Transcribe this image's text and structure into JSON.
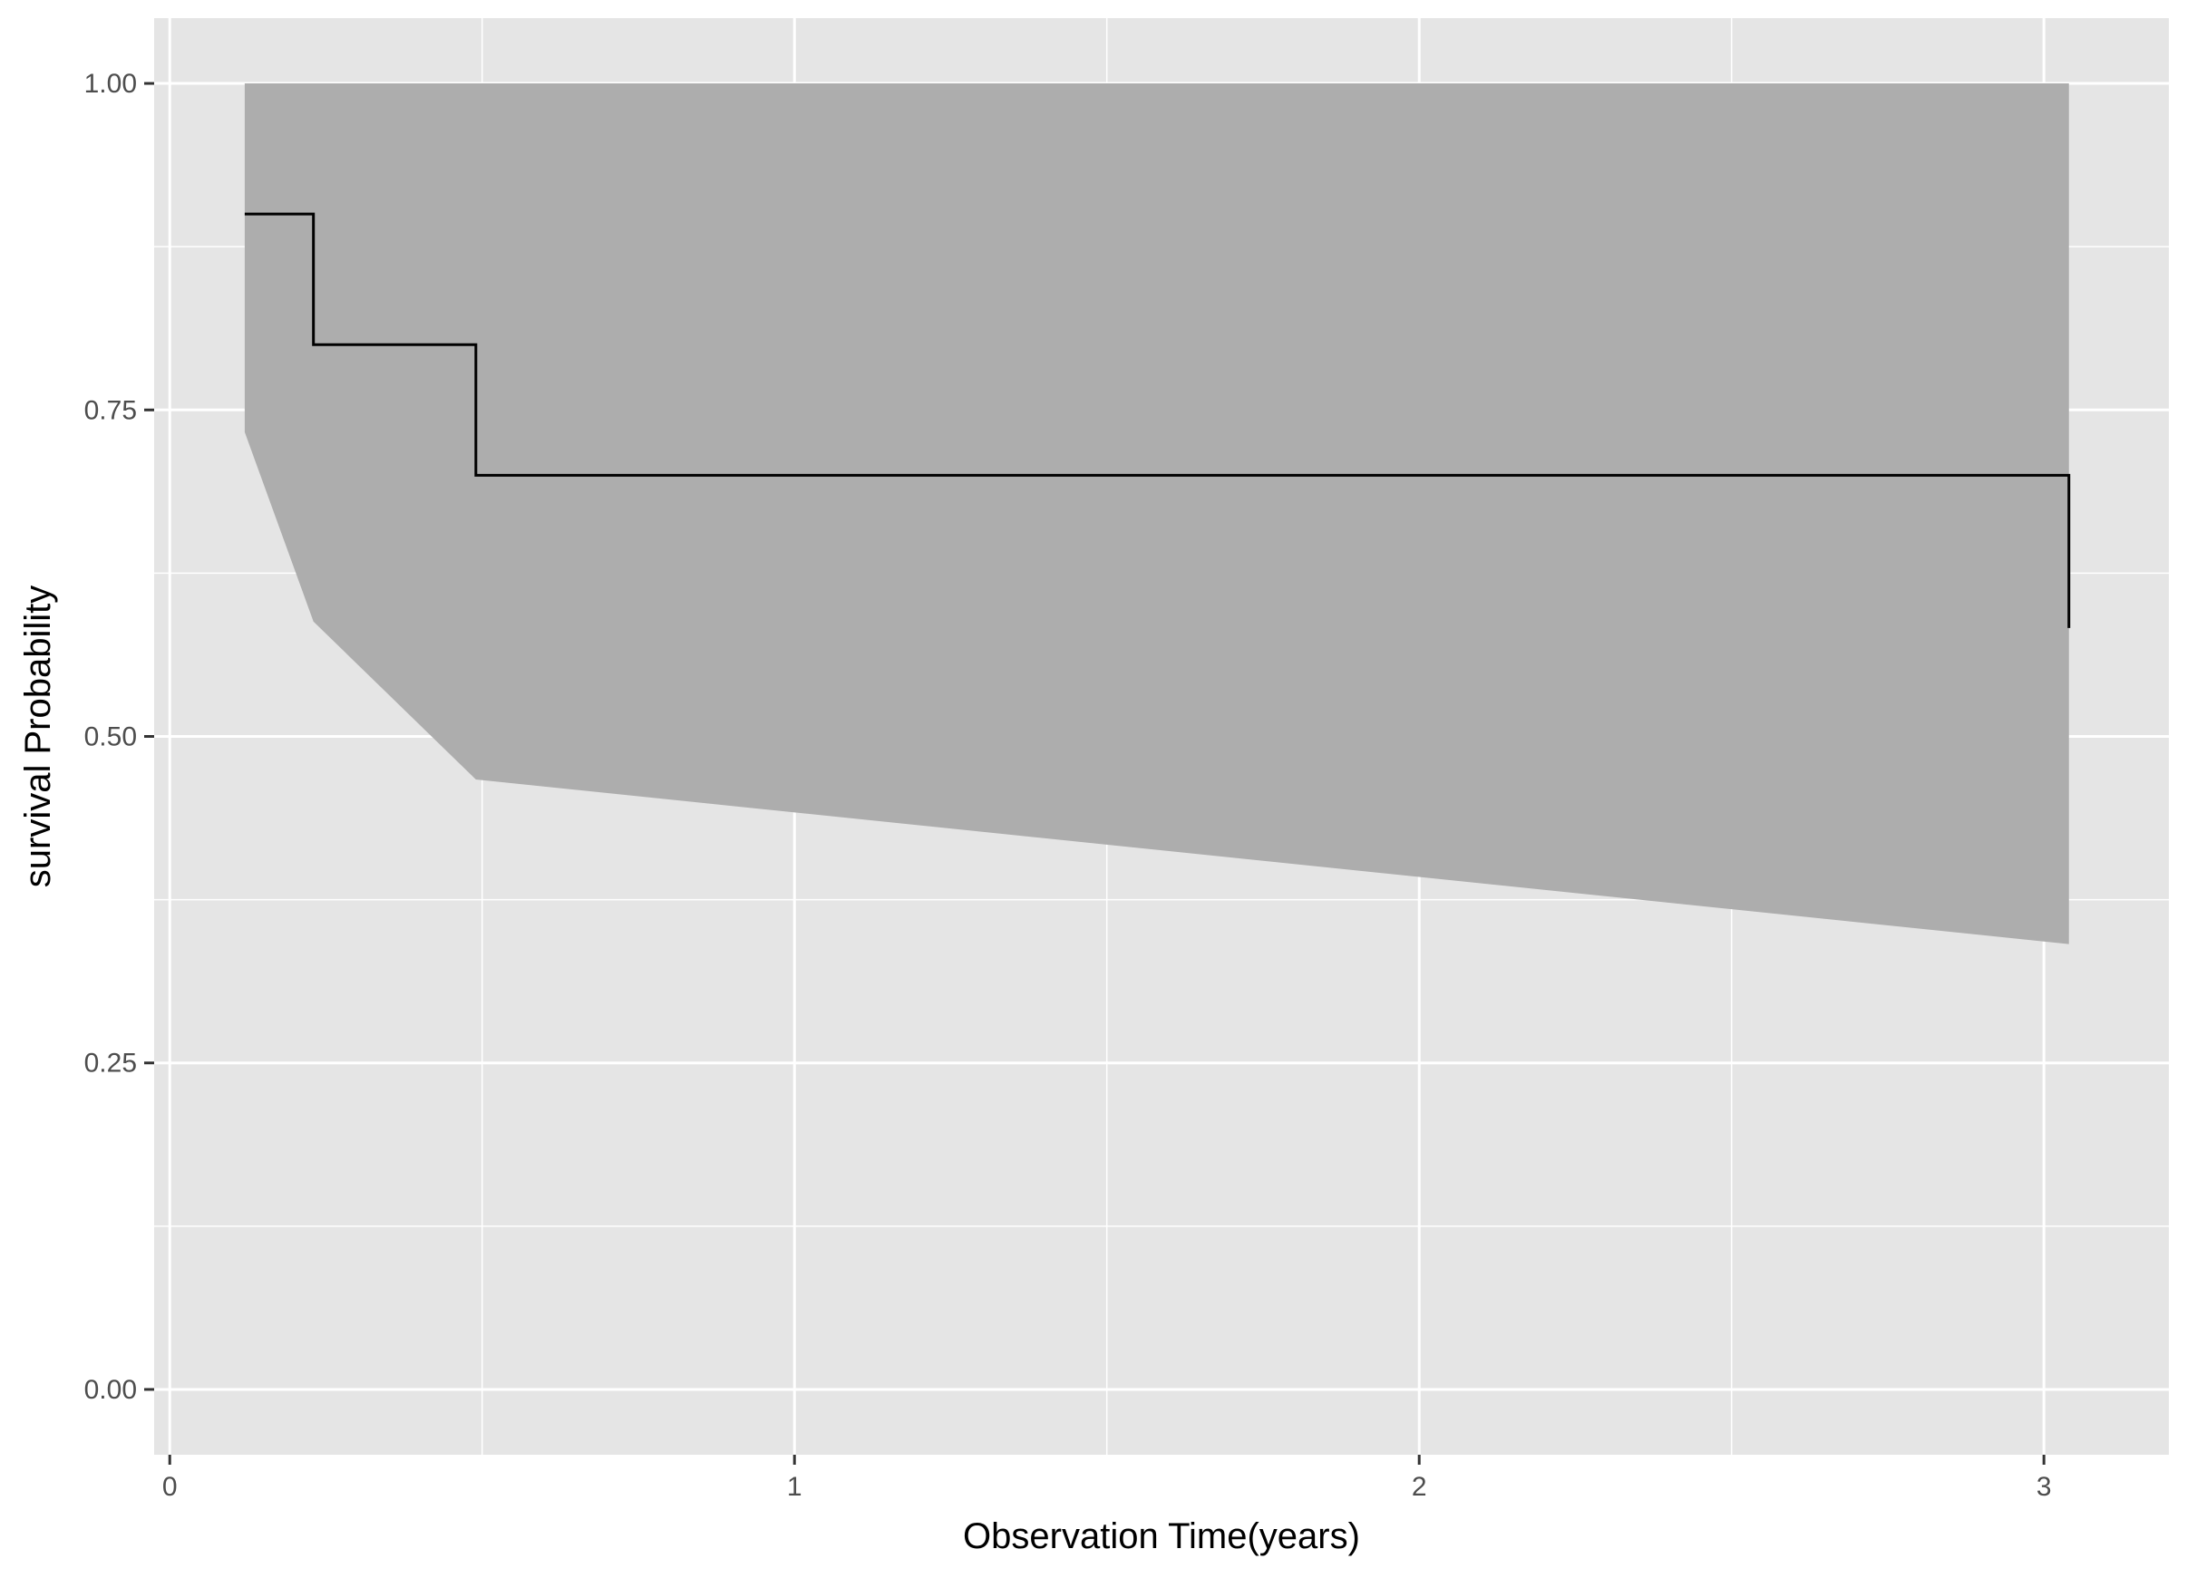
{
  "chart_data": {
    "type": "line",
    "title": "",
    "xlabel": "Observation Time(years)",
    "ylabel": "survival Probability",
    "xlim": [
      -0.025,
      3.2
    ],
    "ylim": [
      -0.05,
      1.05
    ],
    "x_ticks": [
      0,
      1,
      2,
      3
    ],
    "x_tick_labels": [
      "0",
      "1",
      "2",
      "3"
    ],
    "y_ticks": [
      0,
      0.25,
      0.5,
      0.75,
      1
    ],
    "y_tick_labels": [
      "0.00",
      "0.25",
      "0.50",
      "0.75",
      "1.00"
    ],
    "grid": true,
    "legend": "none",
    "colors": {
      "panel_background": "#e5e5e5",
      "grid": "#ffffff",
      "confidence_band": "#adadad",
      "survival_line": "#000000",
      "tick_label": "#4d4d4d",
      "axis_title": "#000000"
    },
    "series": [
      {
        "kind": "step",
        "x": [
          0.12,
          0.23,
          0.49,
          3.04
        ],
        "y": [
          0.9,
          0.8,
          0.7,
          0.583
        ]
      }
    ],
    "confidence_band": {
      "x": [
        0.12,
        0.23,
        0.49,
        3.04
      ],
      "lower": [
        0.733,
        0.588,
        0.467,
        0.341
      ],
      "upper": [
        1.0,
        1.0,
        1.0,
        1.0
      ]
    }
  }
}
